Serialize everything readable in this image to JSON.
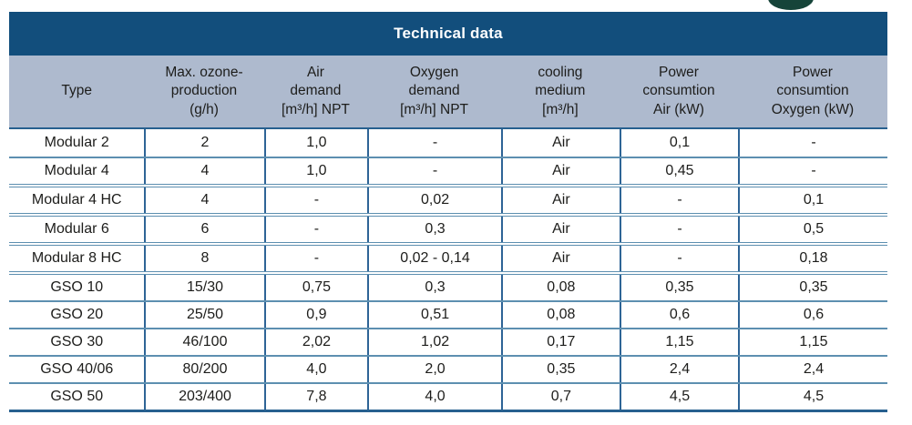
{
  "logo": {
    "name": "cropped-green-logo-fragment",
    "color": "#164439"
  },
  "table": {
    "title": "Technical data",
    "columns": [
      {
        "lines": [
          "Type"
        ]
      },
      {
        "lines": [
          "Max. ozone-",
          "production",
          "(g/h)"
        ]
      },
      {
        "lines": [
          "Air",
          "demand",
          "[m³/h] NPT"
        ]
      },
      {
        "lines": [
          "Oxygen",
          "demand",
          "[m³/h] NPT"
        ]
      },
      {
        "lines": [
          "cooling",
          "medium",
          "[m³/h]"
        ]
      },
      {
        "lines": [
          "Power",
          "consumtion",
          "Air (kW)"
        ]
      },
      {
        "lines": [
          "Power",
          "consumtion",
          "Oxygen (kW)"
        ]
      }
    ],
    "rows": [
      {
        "cells": [
          "Modular 2",
          "2",
          "1,0",
          "-",
          "Air",
          "0,1",
          "-"
        ]
      },
      {
        "cells": [
          "Modular 4",
          "4",
          "1,0",
          "-",
          "Air",
          "0,45",
          "-"
        ]
      },
      {
        "cells": [
          "Modular 4 HC",
          "4",
          "-",
          "0,02",
          "Air",
          "-",
          "0,1"
        ]
      },
      {
        "cells": [
          "Modular 6",
          "6",
          "-",
          "0,3",
          "Air",
          "-",
          "0,5"
        ]
      },
      {
        "cells": [
          "Modular 8 HC",
          "8",
          "-",
          "0,02 - 0,14",
          "Air",
          "-",
          "0,18"
        ]
      },
      {
        "cells": [
          "GSO 10",
          "15/30",
          "0,75",
          "0,3",
          "0,08",
          "0,35",
          "0,35"
        ]
      },
      {
        "cells": [
          "GSO 20",
          "25/50",
          "0,9",
          "0,51",
          "0,08",
          "0,6",
          "0,6"
        ]
      },
      {
        "cells": [
          "GSO 30",
          "46/100",
          "2,02",
          "1,02",
          "0,17",
          "1,15",
          "1,15"
        ]
      },
      {
        "cells": [
          "GSO 40/06",
          "80/200",
          "4,0",
          "2,0",
          "0,35",
          "2,4",
          "2,4"
        ]
      },
      {
        "cells": [
          "GSO 50",
          "203/400",
          "7,8",
          "4,0",
          "0,7",
          "4,5",
          "4,5"
        ]
      }
    ],
    "colors": {
      "title_bar": "#124E7C",
      "title_text": "#FFFFFF",
      "header_bg": "#AEBACE",
      "grid_line": "#5D8FB0",
      "grid_line_dark": "#27608F",
      "vertical_line": "#2E6496",
      "text": "#1D1D1B"
    }
  }
}
